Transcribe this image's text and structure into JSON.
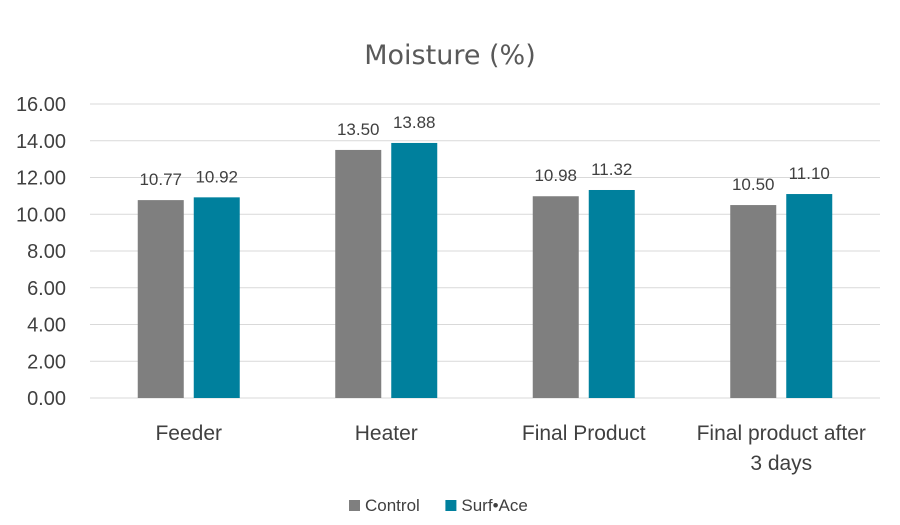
{
  "chart_data": {
    "type": "bar",
    "title": "Moisture (%)",
    "xlabel": "",
    "ylabel": "",
    "categories": [
      [
        "Feeder"
      ],
      [
        "Heater"
      ],
      [
        "Final Product"
      ],
      [
        "Final product after",
        "3 days"
      ]
    ],
    "series": [
      {
        "name": "Control",
        "color": "#7f7f7f",
        "values": [
          10.77,
          13.5,
          10.98,
          10.5
        ],
        "labels": [
          "10.77",
          "13.50",
          "10.98",
          "10.50"
        ]
      },
      {
        "name": "Surf•Ace",
        "color": "#00809d",
        "values": [
          10.92,
          13.88,
          11.32,
          11.1
        ],
        "labels": [
          "10.92",
          "13.88",
          "11.32",
          "11.10"
        ]
      }
    ],
    "ylim": [
      0,
      16
    ],
    "yticks": [
      0,
      2,
      4,
      6,
      8,
      10,
      12,
      14,
      16
    ],
    "ytick_labels": [
      "0.00",
      "2.00",
      "4.00",
      "6.00",
      "8.00",
      "10.00",
      "12.00",
      "14.00",
      "16.00"
    ],
    "grid": true,
    "legend_position": "bottom-center"
  }
}
